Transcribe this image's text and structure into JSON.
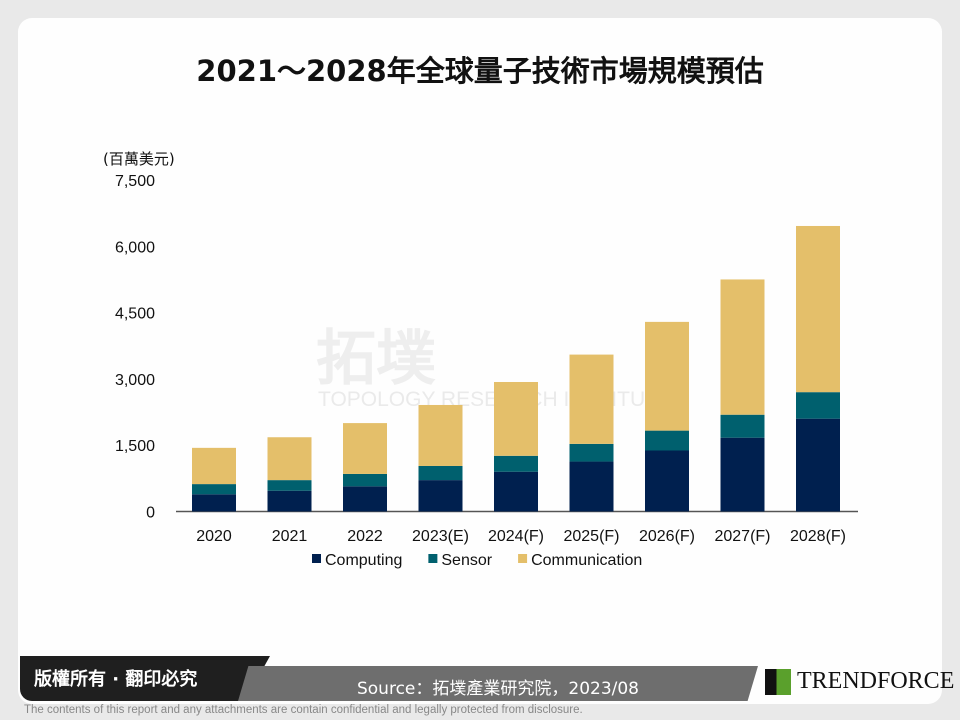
{
  "title": "2021～2028年全球量子技術市場規模預估",
  "chart_data": {
    "type": "bar",
    "stacked": true,
    "title": "2021～2028年全球量子技術市場規模預估",
    "ylabel": "(百萬美元)",
    "ylim": [
      0,
      7500
    ],
    "yticks": [
      "0",
      "1,500",
      "3,000",
      "4,500",
      "6,000",
      "7,500"
    ],
    "categories": [
      "2020",
      "2021",
      "2022",
      "2023(E)",
      "2024(F)",
      "2025(F)",
      "2026(F)",
      "2027(F)",
      "2028(F)"
    ],
    "series": [
      {
        "name": "Computing",
        "color": "#00204f",
        "values": [
          390,
          470,
          570,
          710,
          900,
          1130,
          1380,
          1670,
          2100
        ]
      },
      {
        "name": "Sensor",
        "color": "#00606e",
        "values": [
          230,
          240,
          280,
          320,
          360,
          400,
          450,
          520,
          600
        ]
      },
      {
        "name": "Communication",
        "color": "#e4bf6a",
        "values": [
          820,
          970,
          1150,
          1380,
          1670,
          2020,
          2460,
          3060,
          3760
        ]
      }
    ],
    "legend": "bottom",
    "grid": false
  },
  "watermark": {
    "main": "拓墣",
    "sub": "TOPOLOGY RESEARCH INSTITUTE"
  },
  "footer": {
    "copyright": "版權所有 · 翻印必究",
    "source": "Source：拓墣產業研究院，2023/08",
    "logo": "TRENDFORCE",
    "disclaimer": "The contents of this report and any attachments are contain confidential and legally protected from disclosure."
  }
}
